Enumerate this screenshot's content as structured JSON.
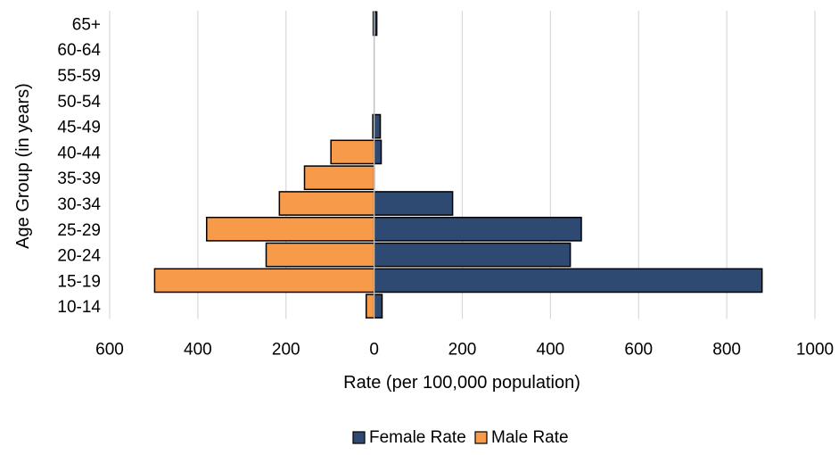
{
  "chart_data": {
    "type": "bar",
    "orientation": "horizontal",
    "title": "",
    "xlabel": "Rate (per 100,000 population)",
    "ylabel": "Age Group (in years)",
    "xlim": [
      -600,
      1000
    ],
    "x_ticks": [
      -600,
      -400,
      -200,
      0,
      200,
      400,
      600,
      800,
      1000
    ],
    "x_tick_labels": [
      "600",
      "400",
      "200",
      "0",
      "200",
      "400",
      "600",
      "800",
      "1000"
    ],
    "categories": [
      "10-14",
      "15-19",
      "20-24",
      "25-29",
      "30-34",
      "35-39",
      "40-44",
      "45-49",
      "50-54",
      "55-59",
      "60-64",
      "65+"
    ],
    "series": [
      {
        "name": "Female Rate",
        "color": "#2E4A72",
        "values": [
          18,
          880,
          445,
          470,
          178,
          0,
          16,
          14,
          0,
          0,
          0,
          6
        ]
      },
      {
        "name": "Male Rate",
        "color": "#F79A4A",
        "values": [
          -18,
          -498,
          -245,
          -380,
          -215,
          -158,
          -98,
          -3,
          0,
          0,
          0,
          -2
        ]
      }
    ],
    "grid": "vertical",
    "legend_position": "bottom"
  }
}
